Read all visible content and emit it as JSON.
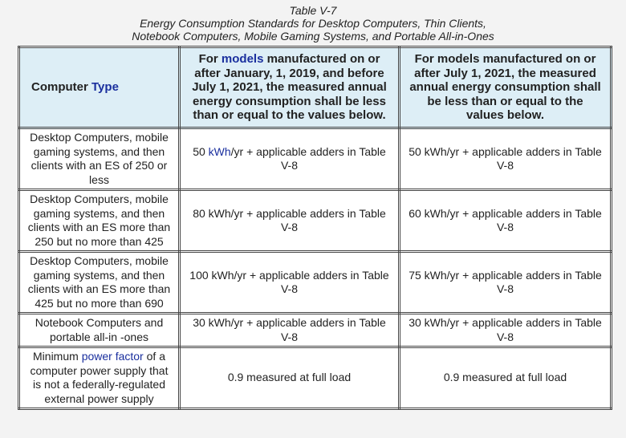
{
  "caption": [
    "Table V-7",
    "Energy Consumption Standards for Desktop Computers, Thin Clients,",
    "Notebook Computers, Mobile Gaming Systems, and Portable All-in-Ones"
  ],
  "table": {
    "header": [
      [
        "Computer",
        " Type"
      ],
      [
        "For ",
        "models",
        " manufactured on or after January, 1, 2019, and before July 1, 2021, the measured annual energy consumption shall be less than or equal to the values below."
      ],
      "For models manufactured on or after July 1, 2021, the measured annual energy consumption shall be less than or equal to the values below."
    ],
    "rows": [
      [
        "Desktop Computers, mobile gaming systems, and then clients with an ES of 250 or less",
        [
          "50 ",
          "kWh",
          "/yr + applicable adders in Table V-8"
        ],
        "50 kWh/yr + applicable adders in Table V-8"
      ],
      [
        "Desktop Computers, mobile gaming systems, and then clients with an ES more than 250 but no more than 425",
        "80 kWh/yr + applicable adders in Table V-8",
        "60 kWh/yr + applicable adders in Table V-8"
      ],
      [
        "Desktop Computers, mobile gaming systems, and then clients with an ES more than 425 but no more than 690",
        "100 kWh/yr + applicable adders in Table V-8",
        "75 kWh/yr + applicable adders in Table V-8"
      ],
      [
        "Notebook Computers and portable all-in -ones",
        "30 kWh/yr + applicable adders in Table V-8",
        "30 kWh/yr + applicable adders in Table V-8"
      ],
      [
        [
          "Minimum ",
          "power factor",
          " of a computer power supply that is not a federally-regulated external power supply"
        ],
        "0.9 measured at full load",
        "0.9 measured at full load"
      ]
    ]
  }
}
